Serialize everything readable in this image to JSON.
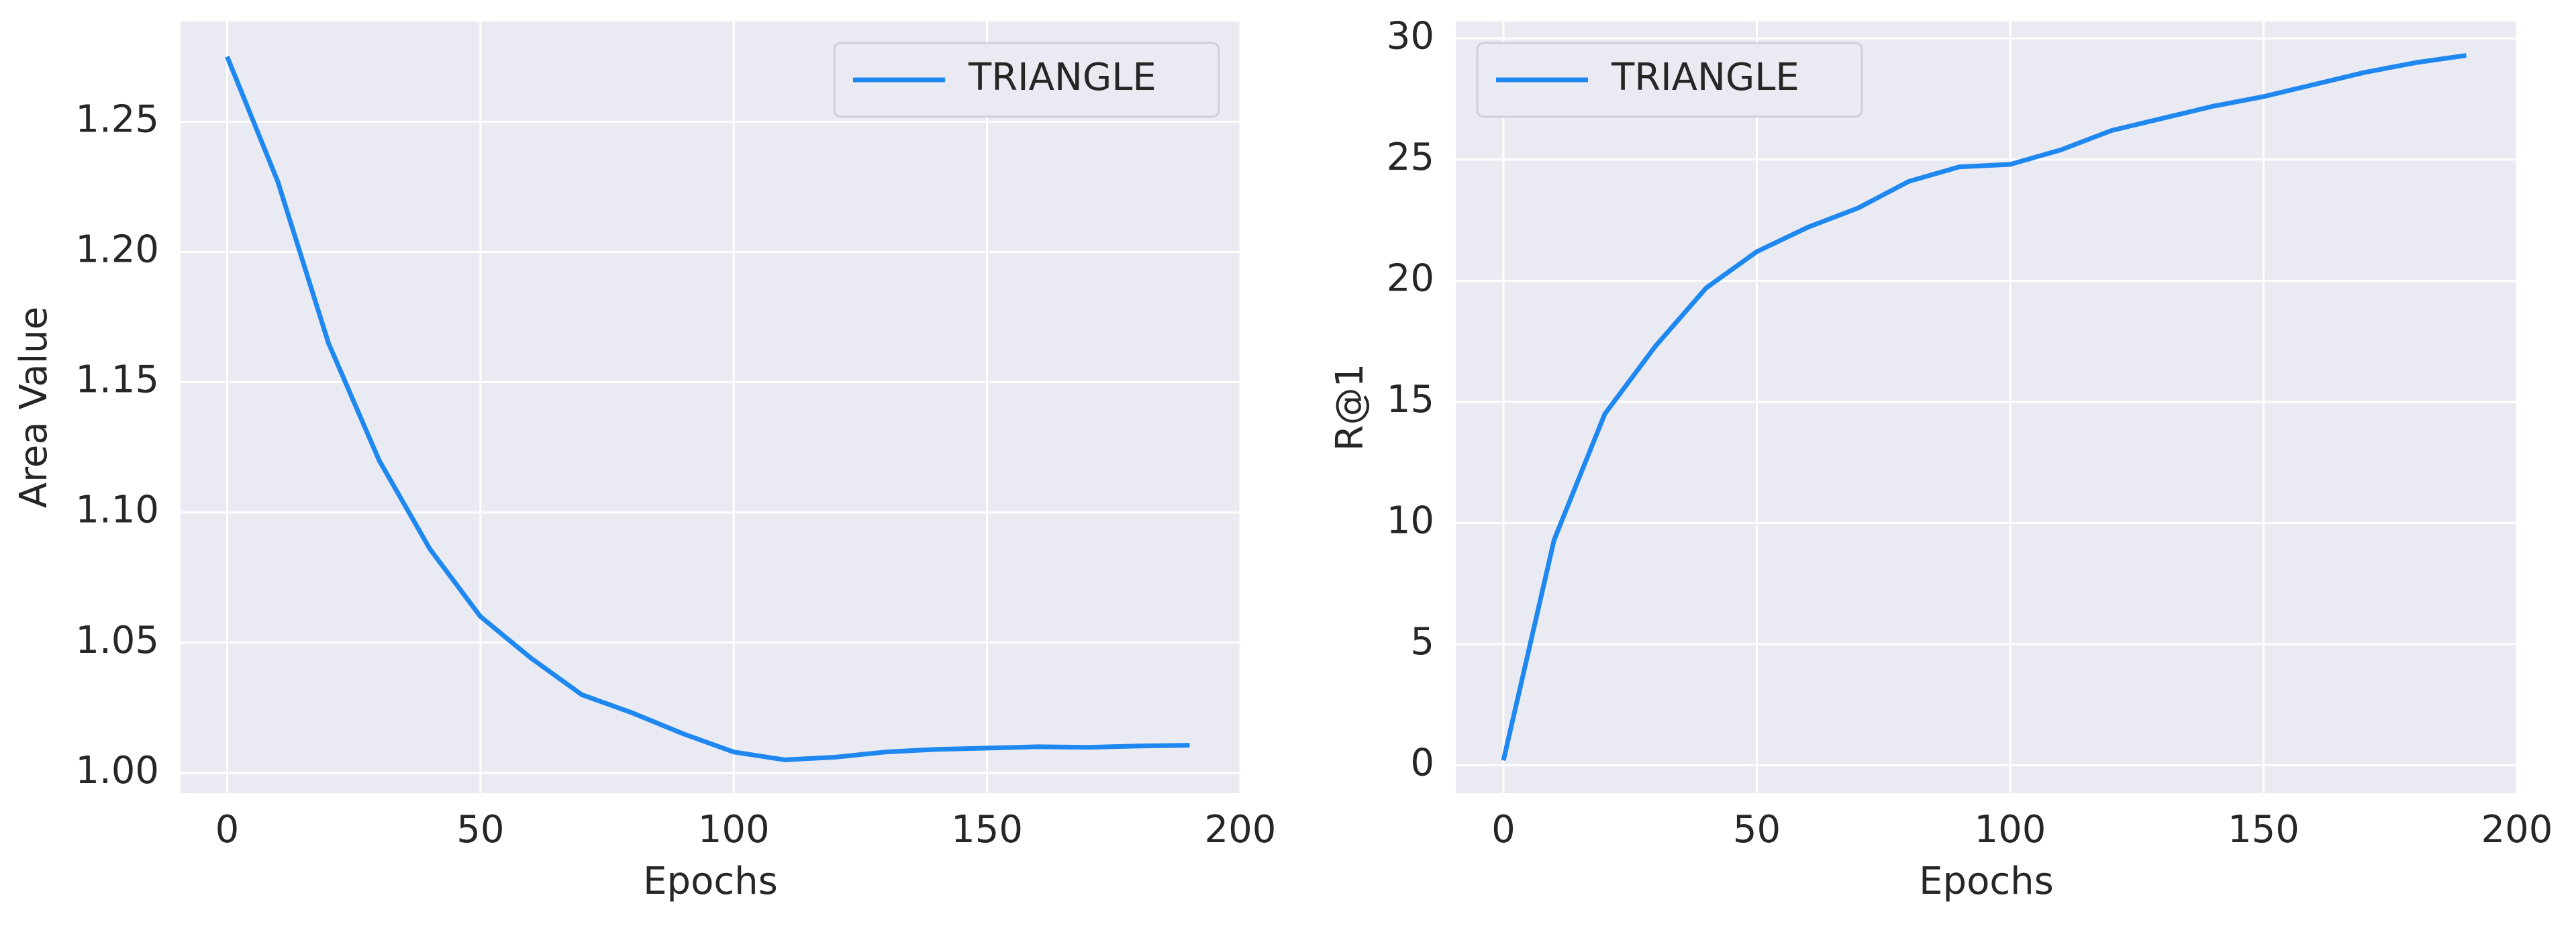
{
  "chart_data": [
    {
      "type": "line",
      "xlabel": "Epochs",
      "ylabel": "Area Value",
      "x": [
        0,
        10,
        20,
        30,
        40,
        50,
        60,
        70,
        80,
        90,
        100,
        110,
        120,
        130,
        140,
        150,
        160,
        170,
        180,
        190
      ],
      "series": [
        {
          "name": "TRIANGLE",
          "color": "#1e88f0",
          "values": [
            1.275,
            1.227,
            1.165,
            1.12,
            1.086,
            1.06,
            1.044,
            1.03,
            1.023,
            1.015,
            1.008,
            1.005,
            1.006,
            1.008,
            1.009,
            1.0095,
            1.01,
            1.0098,
            1.0103,
            1.0106
          ]
        }
      ],
      "xlim": [
        -9.2,
        200
      ],
      "ylim": [
        0.9922,
        1.2885
      ],
      "xticks": [
        0,
        50,
        100,
        150,
        200
      ],
      "yticks": [
        {
          "value": 1.0,
          "label": "1.00"
        },
        1.05,
        {
          "value": 1.1,
          "label": "1.10"
        },
        1.15,
        {
          "value": 1.2,
          "label": "1.20"
        },
        1.25
      ],
      "grid": true,
      "legend": "upper right"
    },
    {
      "type": "line",
      "xlabel": "Epochs",
      "ylabel": "R@1",
      "x": [
        0,
        10,
        20,
        30,
        40,
        50,
        60,
        70,
        80,
        90,
        100,
        110,
        120,
        130,
        140,
        150,
        160,
        170,
        180,
        190
      ],
      "series": [
        {
          "name": "TRIANGLE",
          "color": "#1e88f0",
          "values": [
            0.2,
            9.3,
            14.5,
            17.3,
            19.7,
            21.2,
            22.2,
            23.0,
            24.1,
            24.7,
            24.8,
            25.4,
            26.2,
            26.7,
            27.2,
            27.6,
            28.1,
            28.6,
            29.0,
            29.3
          ]
        }
      ],
      "xlim": [
        -9.4,
        200
      ],
      "ylim": [
        -1.15,
        30.7
      ],
      "xticks": [
        0,
        50,
        100,
        150,
        200
      ],
      "yticks": [
        0,
        5,
        10,
        15,
        20,
        25,
        30
      ],
      "grid": true,
      "legend": "upper left"
    }
  ]
}
